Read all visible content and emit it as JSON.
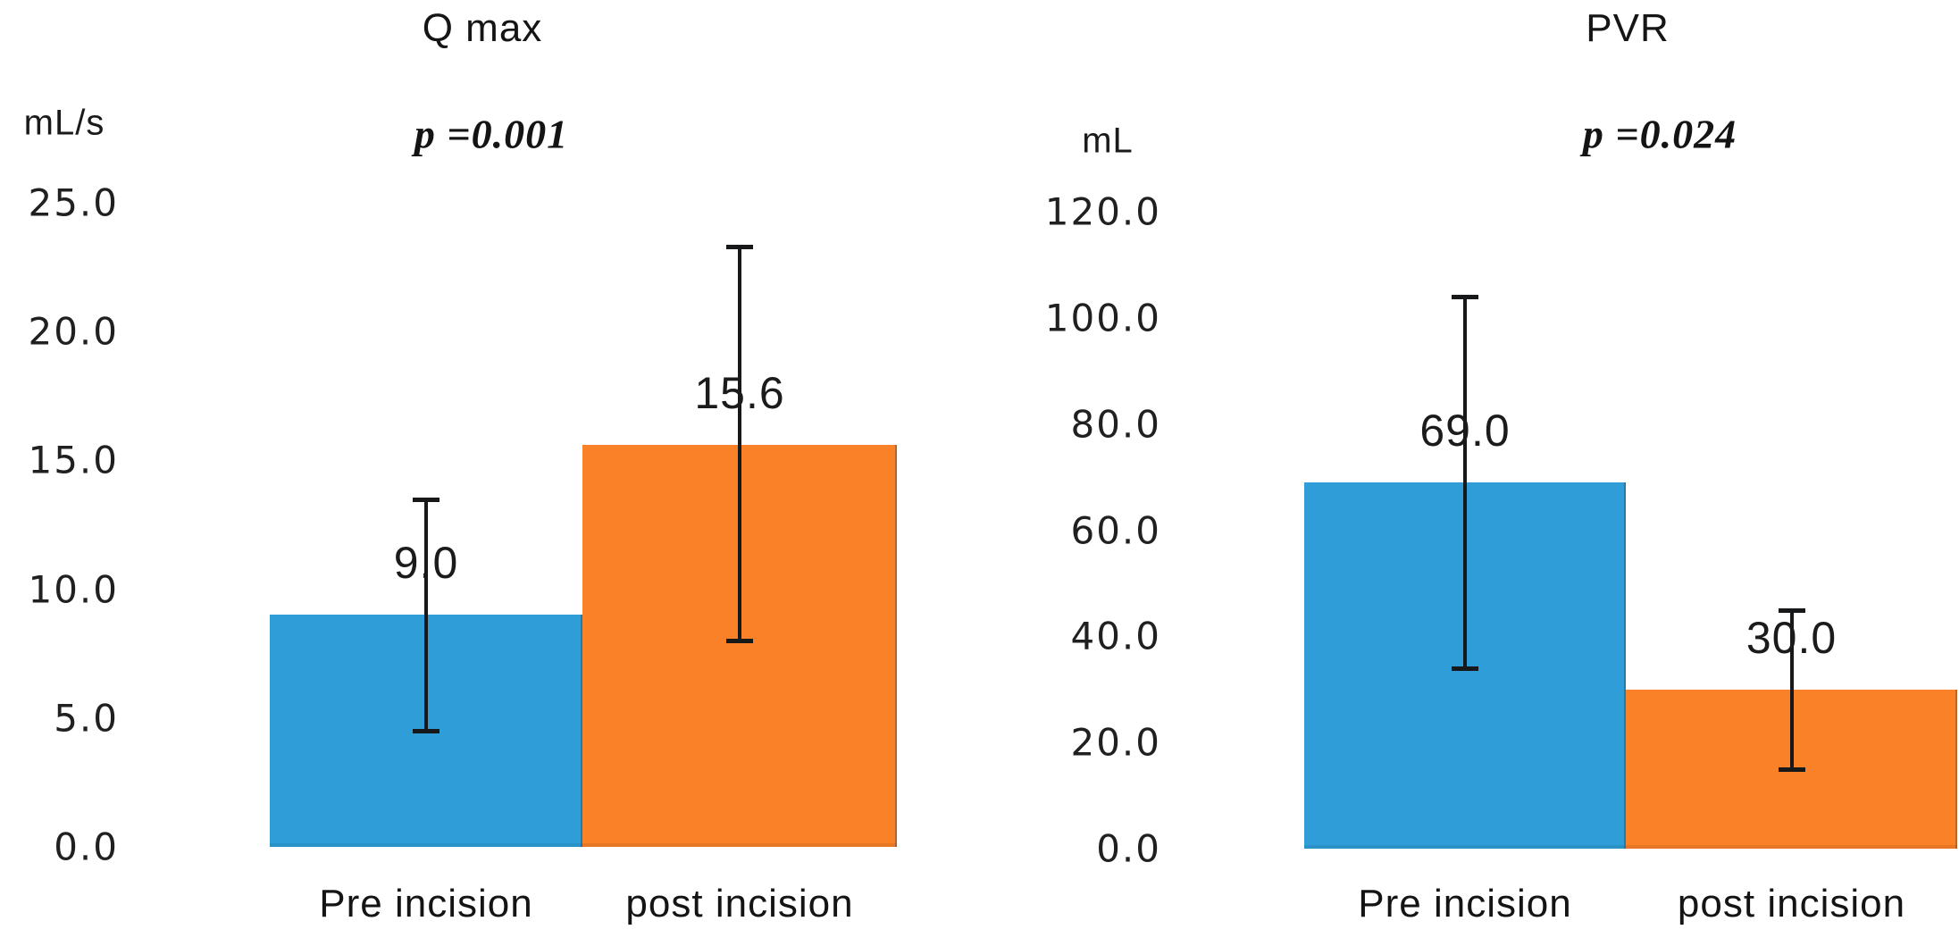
{
  "figure": {
    "background": "#ffffff"
  },
  "colors": {
    "pre_incision_bar": "#2f9ed8",
    "post_incision_bar": "#f98127",
    "error_bar": "#17181a",
    "text": "#1e1e1e"
  },
  "chart_data": [
    {
      "type": "bar",
      "title": "Q max",
      "ylabel": "mL/s",
      "p_annotation": "p =0.001",
      "categories": [
        "Pre incision",
        "post incision"
      ],
      "values": [
        9.0,
        15.6
      ],
      "value_labels": [
        "9.0",
        "15.6"
      ],
      "error_low": [
        4.5,
        8.0
      ],
      "error_high": [
        13.5,
        23.3
      ],
      "bar_colors": [
        "#2f9ed8",
        "#f98127"
      ],
      "ylim": [
        0,
        25
      ],
      "ytick_step": 5,
      "ytick_labels": [
        "25.0",
        "20.0",
        "15.0",
        "10.0",
        "5.0",
        "0.0"
      ],
      "grid": false,
      "legend": "none"
    },
    {
      "type": "bar",
      "title": "PVR",
      "ylabel": "mL",
      "p_annotation": "p =0.024",
      "categories": [
        "Pre incision",
        "post incision"
      ],
      "values": [
        69.0,
        30.0
      ],
      "value_labels": [
        "69.0",
        "30.0"
      ],
      "error_low": [
        34.0,
        15.0
      ],
      "error_high": [
        104.0,
        45.0
      ],
      "bar_colors": [
        "#2f9ed8",
        "#f98127"
      ],
      "ylim": [
        0,
        120
      ],
      "ytick_step": 20,
      "ytick_labels": [
        "120.0",
        "100.0",
        "80.0",
        "60.0",
        "40.0",
        "20.0",
        "0.0"
      ],
      "grid": false,
      "legend": "none"
    }
  ]
}
